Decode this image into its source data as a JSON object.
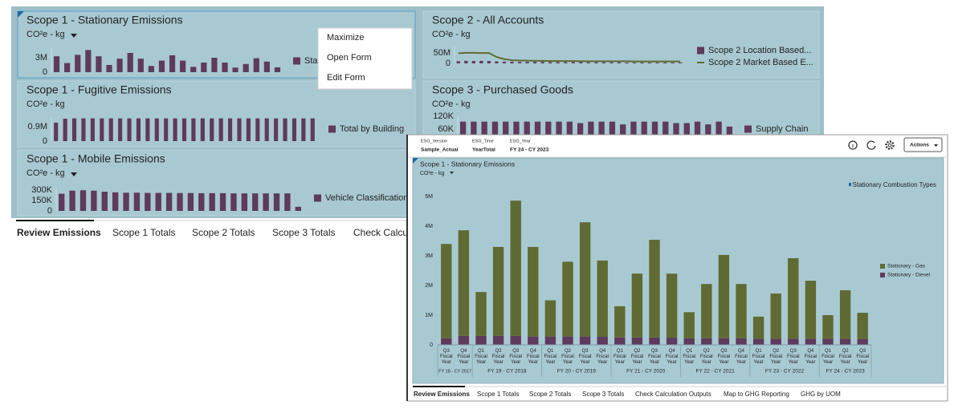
{
  "dashboard": {
    "tiles": [
      {
        "title": "Scope 1 - Stationary Emissions",
        "unit": "CO²e - kg",
        "chart": {
          "type": "bar",
          "ylim": [
            0,
            5000000
          ],
          "yticks": [
            0,
            {
              "value": 3000000,
              "label": "3M"
            }
          ],
          "series": [
            {
              "name": "Stat",
              "type": "bar",
              "color": "#5e3a5c",
              "values": [
                3300000,
                1900000,
                3600000,
                4600000,
                3300000,
                1500000,
                2800000,
                4000000,
                2800000,
                1300000,
                2400000,
                3500000,
                2400000,
                1100000,
                2000000,
                3000000,
                2000000,
                950000,
                1700000,
                2900000,
                2200000,
                1000000
              ]
            }
          ]
        }
      },
      {
        "title": "Scope 2 - All Accounts",
        "unit": "CO²e - kg",
        "chart": {
          "type": "combo",
          "ylim": [
            0,
            80000000
          ],
          "yticks": [
            0,
            {
              "value": 50000000,
              "label": "50M"
            }
          ],
          "series": [
            {
              "name": "Scope 2 Location Based...",
              "type": "bar",
              "color": "#5e3a5c",
              "values": [
                10000000,
                12000000,
                11000000,
                12000000,
                11000000,
                9000000,
                8000000,
                8000000,
                7000000,
                7000000,
                7000000,
                7000000,
                6000000,
                6000000,
                6000000,
                6000000,
                6000000,
                5000000,
                5000000,
                5000000,
                5000000,
                5000000,
                4000000,
                4000000,
                4000000,
                4000000,
                4000000,
                4000000,
                4000000,
                4000000
              ]
            },
            {
              "name": "Scope 2 Market Based E...",
              "type": "line",
              "color": "#5f6b33",
              "values": [
                48000000,
                50000000,
                50000000,
                49000000,
                49000000,
                30000000,
                20000000,
                15000000,
                14000000,
                13000000,
                12000000,
                12000000,
                11000000,
                11000000,
                11000000,
                11000000,
                10000000,
                10000000,
                10000000,
                10000000,
                10000000,
                10000000,
                10000000,
                9000000,
                9000000,
                9000000,
                9000000,
                9000000,
                9000000,
                9000000
              ]
            }
          ]
        }
      },
      {
        "title": "Scope 1 - Fugitive Emissions",
        "unit": "CO²e - kg",
        "chart": {
          "type": "bar",
          "ylim": [
            0,
            1500000
          ],
          "yticks": [
            0,
            {
              "value": 900000,
              "label": "0.9M"
            }
          ],
          "series": [
            {
              "name": "Total by Building",
              "type": "bar",
              "color": "#5e3a5c",
              "values": [
                1150000,
                1400000,
                1420000,
                1420000,
                1420000,
                1420000,
                1420000,
                1420000,
                1420000,
                1420000,
                1420000,
                1420000,
                1420000,
                1420000,
                1420000,
                1420000,
                1420000,
                1420000,
                1420000,
                1420000,
                1420000,
                1420000,
                1420000,
                1420000,
                1420000,
                1420000,
                1420000,
                1420000,
                1420000
              ]
            }
          ]
        }
      },
      {
        "title": "Scope 3 - Purchased Goods",
        "unit": "CO²e - kg",
        "chart": {
          "type": "bar",
          "ylim": [
            0,
            120000
          ],
          "yticks": [
            {
              "value": 60000,
              "label": "60K"
            },
            {
              "value": 120000,
              "label": "120K"
            }
          ],
          "series": [
            {
              "name": "Supply Chain",
              "type": "bar",
              "color": "#5e3a5c",
              "values": [
                95000,
                95000,
                95000,
                95000,
                95000,
                95000,
                95000,
                95000,
                95000,
                95000,
                95000,
                88000,
                95000,
                95000,
                95000,
                82000,
                95000,
                95000,
                95000,
                95000,
                88000,
                88000,
                95000,
                82000,
                95000,
                72000
              ]
            }
          ]
        }
      },
      {
        "title": "Scope 1 - Mobile Emissions",
        "unit": "CO²e - kg",
        "chart": {
          "type": "bar",
          "ylim": [
            0,
            350000
          ],
          "yticks": [
            0,
            {
              "value": 150000,
              "label": "150K"
            },
            {
              "value": 300000,
              "label": "300K"
            }
          ],
          "series": [
            {
              "name": "Vehicle Classification",
              "type": "bar",
              "color": "#5e3a5c",
              "values": [
                250000,
                295000,
                300000,
                295000,
                280000,
                270000,
                265000,
                265000,
                262000,
                262000,
                262000,
                260000,
                260000,
                258000,
                258000,
                258000,
                255000,
                255000,
                255000,
                255000,
                255000,
                255000,
                60000
              ]
            }
          ]
        }
      }
    ],
    "context_menu": [
      "Maximize",
      "Open Form",
      "Edit Form"
    ],
    "tabs": [
      "Review Emissions",
      "Scope 1 Totals",
      "Scope 2 Totals",
      "Scope 3 Totals",
      "Check Calcul"
    ]
  },
  "form": {
    "pov": [
      {
        "name": "ESG_Version",
        "value": "Sample_Actual"
      },
      {
        "name": "ESG_Time",
        "value": "YearTotal"
      },
      {
        "name": "ESG_Year",
        "value": "FY 24 - CY 2023"
      }
    ],
    "actions": "Actions",
    "chart_data": {
      "type": "stacked_bar",
      "title": "Scope 1 - Stationary Emissions",
      "subtitle": "CO²e - kg",
      "link": "Stationary Combustion Types",
      "ylim": [
        0,
        5000000
      ],
      "yticks": [
        0,
        {
          "value": 1000000,
          "label": "1M"
        },
        {
          "value": 2000000,
          "label": "2M"
        },
        {
          "value": 3000000,
          "label": "3M"
        },
        {
          "value": 4000000,
          "label": "4M"
        },
        {
          "value": 5000000,
          "label": "5M"
        }
      ],
      "groups": [
        {
          "label": "FY 18 - CY 2017",
          "categories": [
            "Q3 Fiscal Year",
            "Q4 Fiscal Year"
          ]
        },
        {
          "label": "FY 19 - CY 2018",
          "categories": [
            "Q1 Fiscal Year",
            "Q2 Fiscal Year",
            "Q3 Fiscal Year",
            "Q4 Fiscal Year"
          ]
        },
        {
          "label": "FY 20 - CY 2019",
          "categories": [
            "Q1 Fiscal Year",
            "Q2 Fiscal Year",
            "Q3 Fiscal Year",
            "Q4 Fiscal Year"
          ]
        },
        {
          "label": "FY 21 - CY 2020",
          "categories": [
            "Q1 Fiscal Year",
            "Q2 Fiscal Year",
            "Q3 Fiscal Year",
            "Q4 Fiscal Year"
          ]
        },
        {
          "label": "FY 22 - CY 2021",
          "categories": [
            "Q1 Fiscal Year",
            "Q2 Fiscal Year",
            "Q3 Fiscal Year",
            "Q4 Fiscal Year"
          ]
        },
        {
          "label": "FY 23 - CY 2022",
          "categories": [
            "Q1 Fiscal Year",
            "Q2 Fiscal Year",
            "Q3 Fiscal Year",
            "Q4 Fiscal Year"
          ]
        },
        {
          "label": "FY 24 - CY 2023",
          "categories": [
            "Q1 Fiscal Year",
            "Q2 Fiscal Year",
            "Q3 Fiscal Year"
          ]
        }
      ],
      "series": [
        {
          "name": "Stationary - Gas",
          "color": "#5f6b33",
          "values": [
            3180000,
            3560000,
            1480000,
            3000000,
            4560000,
            3020000,
            1220000,
            2520000,
            3850000,
            2570000,
            1050000,
            2150000,
            3290000,
            2160000,
            880000,
            1830000,
            2810000,
            1830000,
            750000,
            1530000,
            2720000,
            1960000,
            800000,
            1640000,
            890000
          ]
        },
        {
          "name": "Stationary - Diesel",
          "color": "#5e3a5c",
          "values": [
            220000,
            300000,
            300000,
            300000,
            300000,
            280000,
            280000,
            280000,
            280000,
            270000,
            250000,
            250000,
            250000,
            240000,
            220000,
            220000,
            220000,
            220000,
            200000,
            200000,
            200000,
            200000,
            200000,
            200000,
            190000
          ]
        }
      ]
    },
    "tabs": [
      "Review Emissions",
      "Scope 1 Totals",
      "Scope 2 Totals",
      "Scope 3 Totals",
      "Check Calculation Outputs",
      "Map to GHG Reporting",
      "GHG by UOM"
    ]
  }
}
